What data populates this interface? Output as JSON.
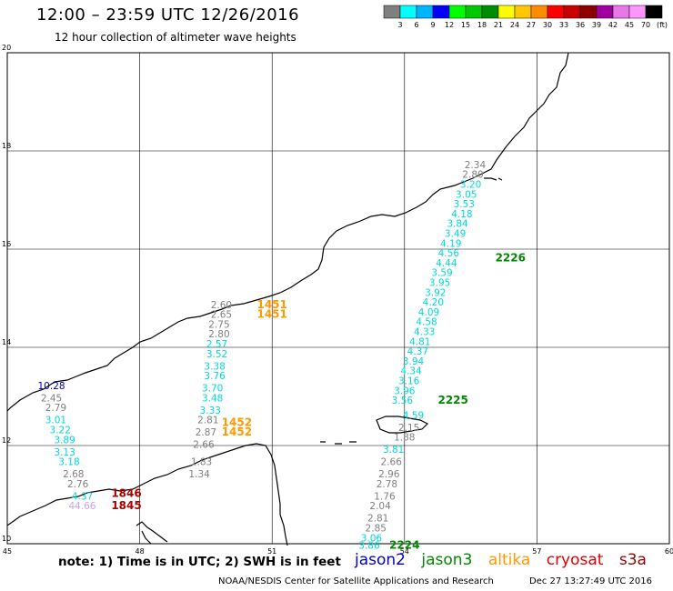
{
  "title": "12:00 – 23:59 UTC 12/26/2016",
  "subtitle": "12 hour collection of altimeter wave heights",
  "notes": "note: 1) Time is in UTC; 2) SWH is in feet",
  "credit": "NOAA/NESDIS Center for Satellite Applications and Research",
  "timestamp": "Dec 27 13:27:49 UTC 2016",
  "scale": {
    "unit": "(ft)",
    "labels": [
      "3",
      "6",
      "9",
      "12",
      "15",
      "18",
      "21",
      "24",
      "27",
      "30",
      "33",
      "36",
      "39",
      "42",
      "45",
      "70"
    ],
    "colors": [
      "#7f7f7f",
      "#00ffff",
      "#00b4ff",
      "#0000ff",
      "#00ff00",
      "#00c800",
      "#008c00",
      "#ffff00",
      "#ffc800",
      "#ff8c00",
      "#ff0000",
      "#c80000",
      "#8c0000",
      "#a000a0",
      "#e878e8",
      "#ff96ff",
      "#000000"
    ]
  },
  "satellites": [
    {
      "name": "jason2",
      "color": "#0000cc"
    },
    {
      "name": "jason3",
      "color": "#008800"
    },
    {
      "name": "altika",
      "color": "#ff9900"
    },
    {
      "name": "cryosat",
      "color": "#dd0000"
    },
    {
      "name": "s3a",
      "color": "#990000"
    }
  ],
  "chart_data": {
    "type": "scatter",
    "title": "12:00 – 23:59 UTC 12/26/2016",
    "subtitle": "12 hour collection of altimeter wave heights",
    "xlim": [
      45,
      60
    ],
    "ylim": [
      10,
      20
    ],
    "xticks": [
      "45",
      "48",
      "51",
      "54",
      "57",
      "60"
    ],
    "yticks": [
      "10",
      "12",
      "14",
      "16",
      "18",
      "20"
    ],
    "tracks": [
      {
        "points": [
          {
            "lon": 46.0,
            "lat": 13.15,
            "v": "10.28",
            "c": "#0000aa"
          },
          {
            "lon": 46.0,
            "lat": 12.9,
            "v": "2.45",
            "c": "#7f7f7f"
          },
          {
            "lon": 46.1,
            "lat": 12.7,
            "v": "2.79",
            "c": "#7f7f7f"
          },
          {
            "lon": 46.1,
            "lat": 12.45,
            "v": "3.01",
            "c": "#00d8d8"
          },
          {
            "lon": 46.2,
            "lat": 12.25,
            "v": "3.22",
            "c": "#00d8d8"
          },
          {
            "lon": 46.3,
            "lat": 12.05,
            "v": "3.89",
            "c": "#00d8d8"
          },
          {
            "lon": 46.3,
            "lat": 11.8,
            "v": "3.13",
            "c": "#00d8d8"
          },
          {
            "lon": 46.4,
            "lat": 11.6,
            "v": "3.18",
            "c": "#00d8d8"
          },
          {
            "lon": 46.5,
            "lat": 11.35,
            "v": "2.68",
            "c": "#7f7f7f"
          },
          {
            "lon": 46.6,
            "lat": 11.15,
            "v": "2.76",
            "c": "#7f7f7f"
          },
          {
            "lon": 46.7,
            "lat": 10.9,
            "v": "4.37",
            "c": "#00d8d8"
          },
          {
            "lon": 46.7,
            "lat": 10.7,
            "v": "44.66",
            "c": "#c8a0ff"
          }
        ]
      },
      {
        "points": [
          {
            "lon": 49.85,
            "lat": 14.8,
            "v": "2.60",
            "c": "#7f7f7f"
          },
          {
            "lon": 49.85,
            "lat": 14.6,
            "v": "2.65",
            "c": "#7f7f7f"
          },
          {
            "lon": 49.8,
            "lat": 14.4,
            "v": "2.75",
            "c": "#7f7f7f"
          },
          {
            "lon": 49.8,
            "lat": 14.2,
            "v": "2.80",
            "c": "#7f7f7f"
          },
          {
            "lon": 49.75,
            "lat": 14.0,
            "v": "2.57",
            "c": "#00d8d8"
          },
          {
            "lon": 49.75,
            "lat": 13.8,
            "v": "3.52",
            "c": "#00d8d8"
          },
          {
            "lon": 49.7,
            "lat": 13.55,
            "v": "3.38",
            "c": "#00d8d8"
          },
          {
            "lon": 49.7,
            "lat": 13.35,
            "v": "3.76",
            "c": "#00d8d8"
          },
          {
            "lon": 49.65,
            "lat": 13.1,
            "v": "3.70",
            "c": "#00d8d8"
          },
          {
            "lon": 49.65,
            "lat": 12.9,
            "v": "3.48",
            "c": "#00d8d8"
          },
          {
            "lon": 49.6,
            "lat": 12.65,
            "v": "3.33",
            "c": "#00d8d8"
          },
          {
            "lon": 49.55,
            "lat": 12.45,
            "v": "2.81",
            "c": "#7f7f7f"
          },
          {
            "lon": 49.5,
            "lat": 12.2,
            "v": "2.87",
            "c": "#7f7f7f"
          },
          {
            "lon": 49.45,
            "lat": 11.95,
            "v": "2.66",
            "c": "#7f7f7f"
          },
          {
            "lon": 49.4,
            "lat": 11.6,
            "v": "1.83",
            "c": "#7f7f7f"
          },
          {
            "lon": 49.35,
            "lat": 11.35,
            "v": "1.34",
            "c": "#7f7f7f"
          }
        ]
      },
      {
        "points": [
          {
            "lon": 55.6,
            "lat": 17.65,
            "v": "2.34",
            "c": "#7f7f7f"
          },
          {
            "lon": 55.55,
            "lat": 17.45,
            "v": "2.80",
            "c": "#7f7f7f"
          },
          {
            "lon": 55.5,
            "lat": 17.25,
            "v": "3.20",
            "c": "#00d8d8"
          },
          {
            "lon": 55.4,
            "lat": 17.05,
            "v": "3.05",
            "c": "#00d8d8"
          },
          {
            "lon": 55.35,
            "lat": 16.85,
            "v": "3.53",
            "c": "#00d8d8"
          },
          {
            "lon": 55.3,
            "lat": 16.65,
            "v": "4.18",
            "c": "#00d8d8"
          },
          {
            "lon": 55.2,
            "lat": 16.45,
            "v": "3.84",
            "c": "#00d8d8"
          },
          {
            "lon": 55.15,
            "lat": 16.25,
            "v": "3.49",
            "c": "#00d8d8"
          },
          {
            "lon": 55.05,
            "lat": 16.05,
            "v": "4.19",
            "c": "#00d8d8"
          },
          {
            "lon": 55.0,
            "lat": 15.85,
            "v": "4.56",
            "c": "#00d8d8"
          },
          {
            "lon": 54.95,
            "lat": 15.65,
            "v": "4.44",
            "c": "#00d8d8"
          },
          {
            "lon": 54.85,
            "lat": 15.45,
            "v": "3.59",
            "c": "#00d8d8"
          },
          {
            "lon": 54.8,
            "lat": 15.25,
            "v": "3.95",
            "c": "#00d8d8"
          },
          {
            "lon": 54.7,
            "lat": 15.05,
            "v": "3.92",
            "c": "#00d8d8"
          },
          {
            "lon": 54.65,
            "lat": 14.85,
            "v": "4.20",
            "c": "#00d8d8"
          },
          {
            "lon": 54.55,
            "lat": 14.65,
            "v": "4.09",
            "c": "#00d8d8"
          },
          {
            "lon": 54.5,
            "lat": 14.45,
            "v": "4.58",
            "c": "#00d8d8"
          },
          {
            "lon": 54.45,
            "lat": 14.25,
            "v": "4.33",
            "c": "#00d8d8"
          },
          {
            "lon": 54.35,
            "lat": 14.05,
            "v": "4.81",
            "c": "#00d8d8"
          },
          {
            "lon": 54.3,
            "lat": 13.85,
            "v": "4.37",
            "c": "#00d8d8"
          },
          {
            "lon": 54.2,
            "lat": 13.65,
            "v": "3.94",
            "c": "#00d8d8"
          },
          {
            "lon": 54.15,
            "lat": 13.45,
            "v": "4.34",
            "c": "#00d8d8"
          },
          {
            "lon": 54.1,
            "lat": 13.25,
            "v": "3.16",
            "c": "#00d8d8"
          },
          {
            "lon": 54.0,
            "lat": 13.05,
            "v": "3.96",
            "c": "#00d8d8"
          },
          {
            "lon": 53.95,
            "lat": 12.85,
            "v": "3.56",
            "c": "#00d8d8"
          }
        ]
      },
      {
        "points": [
          {
            "lon": 54.2,
            "lat": 12.55,
            "v": "4.59",
            "c": "#00d8d8"
          },
          {
            "lon": 54.1,
            "lat": 12.3,
            "v": "2.15",
            "c": "#7f7f7f"
          },
          {
            "lon": 54.0,
            "lat": 12.1,
            "v": "1.88",
            "c": "#7f7f7f"
          },
          {
            "lon": 53.75,
            "lat": 11.85,
            "v": "3.81",
            "c": "#00d8d8"
          },
          {
            "lon": 53.7,
            "lat": 11.6,
            "v": "2.66",
            "c": "#7f7f7f"
          },
          {
            "lon": 53.65,
            "lat": 11.35,
            "v": "2.96",
            "c": "#7f7f7f"
          },
          {
            "lon": 53.6,
            "lat": 11.15,
            "v": "2.78",
            "c": "#7f7f7f"
          },
          {
            "lon": 53.55,
            "lat": 10.9,
            "v": "1.76",
            "c": "#7f7f7f"
          },
          {
            "lon": 53.45,
            "lat": 10.7,
            "v": "2.04",
            "c": "#7f7f7f"
          },
          {
            "lon": 53.4,
            "lat": 10.45,
            "v": "2.81",
            "c": "#7f7f7f"
          },
          {
            "lon": 53.35,
            "lat": 10.25,
            "v": "2.85",
            "c": "#7f7f7f"
          },
          {
            "lon": 53.25,
            "lat": 10.05,
            "v": "3.06",
            "c": "#00d8d8"
          },
          {
            "lon": 53.2,
            "lat": 9.9,
            "v": "3.86",
            "c": "#00d8d8"
          }
        ]
      }
    ],
    "time_labels": [
      {
        "lon": 51.0,
        "lat": 14.8,
        "t": "1451",
        "c": "#ff9900"
      },
      {
        "lon": 51.0,
        "lat": 14.6,
        "t": "1451",
        "c": "#ff9900"
      },
      {
        "lon": 50.2,
        "lat": 12.4,
        "t": "1452",
        "c": "#ff9900"
      },
      {
        "lon": 50.2,
        "lat": 12.2,
        "t": "1452",
        "c": "#ff9900"
      },
      {
        "lon": 47.7,
        "lat": 10.95,
        "t": "1846",
        "c": "#aa0000"
      },
      {
        "lon": 47.7,
        "lat": 10.7,
        "t": "1845",
        "c": "#aa0000"
      },
      {
        "lon": 56.4,
        "lat": 15.75,
        "t": "2226",
        "c": "#008800"
      },
      {
        "lon": 55.1,
        "lat": 12.85,
        "t": "2225",
        "c": "#008800"
      },
      {
        "lon": 54.0,
        "lat": 9.9,
        "t": "2224",
        "c": "#008800"
      }
    ]
  }
}
